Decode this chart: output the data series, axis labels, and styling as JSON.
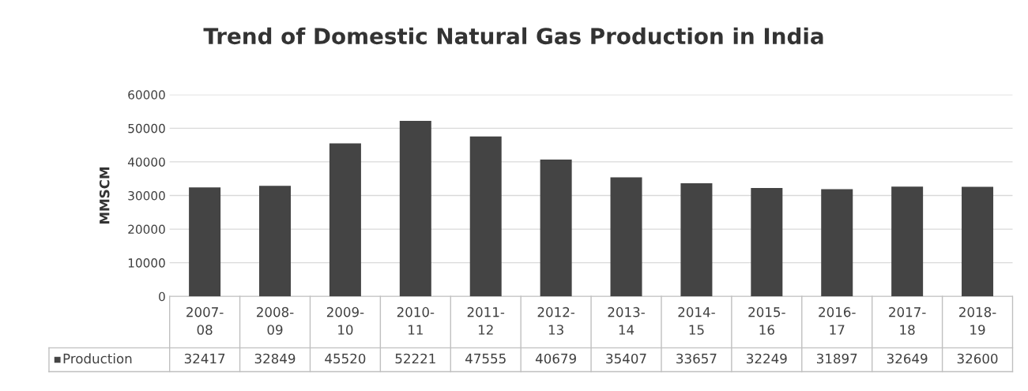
{
  "chart_data": {
    "type": "bar",
    "title": "Trend of Domestic Natural Gas Production in India",
    "ylabel": "MMSCM",
    "categories": [
      "2007-08",
      "2008-09",
      "2009-10",
      "2010-11",
      "2011-12",
      "2012-13",
      "2013-14",
      "2014-15",
      "2015-16",
      "2016-17",
      "2017-18",
      "2018-19"
    ],
    "series": [
      {
        "name": "Production",
        "color": "#444444",
        "values": [
          32417,
          32849,
          45520,
          52221,
          47555,
          40679,
          35407,
          33657,
          32249,
          31897,
          32649,
          32600
        ]
      }
    ],
    "ylim": [
      0,
      60000
    ],
    "yticks": [
      0,
      10000,
      20000,
      30000,
      40000,
      50000,
      60000
    ],
    "grid": "y",
    "data_labels": true,
    "legend": "bottom"
  }
}
